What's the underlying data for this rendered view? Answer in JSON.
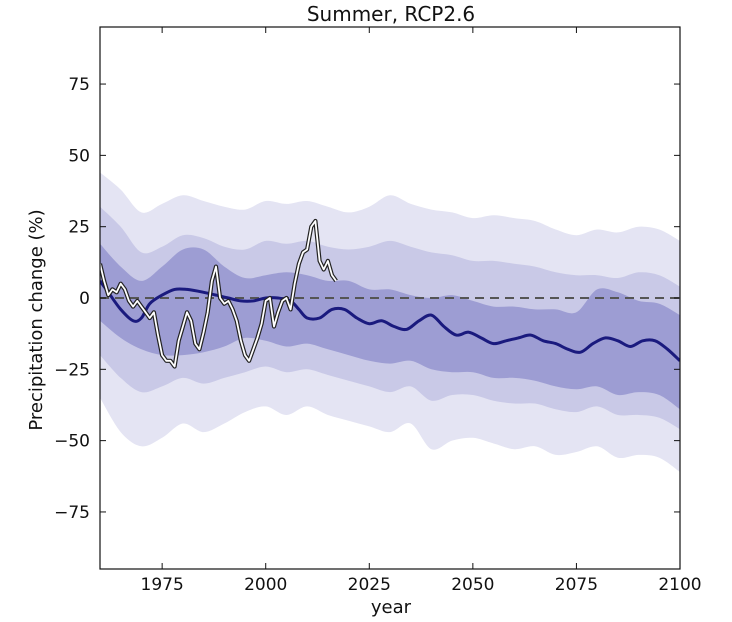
{
  "chart_data": {
    "type": "line",
    "title": "Summer, RCP2.6",
    "xlabel": "year",
    "ylabel": "Precipitation change (%)",
    "xlim": [
      1960,
      2100
    ],
    "ylim": [
      -95,
      95
    ],
    "xticks": [
      1975,
      2000,
      2025,
      2050,
      2075,
      2100
    ],
    "yticks": [
      -75,
      -50,
      -25,
      0,
      25,
      50,
      75
    ],
    "xtick_labels": [
      "1975",
      "2000",
      "2025",
      "2050",
      "2075",
      "2100"
    ],
    "ytick_labels": [
      "−75",
      "−50",
      "−25",
      "0",
      "25",
      "50",
      "75"
    ],
    "reference_line": {
      "y": 0,
      "style": "dashed",
      "color": "#555555"
    },
    "colors": {
      "band_outer": "#e4e4f3",
      "band_middle": "#c9c9e7",
      "band_inner": "#9d9dd3",
      "median": "#1a1a7e",
      "observed_outline": "#222222",
      "observed": "#ffffff"
    },
    "bands": {
      "x": [
        1960,
        1965,
        1970,
        1975,
        1980,
        1985,
        1990,
        1995,
        2000,
        2005,
        2010,
        2015,
        2020,
        2025,
        2030,
        2035,
        2040,
        2045,
        2050,
        2055,
        2060,
        2065,
        2070,
        2075,
        2080,
        2085,
        2090,
        2095,
        2100
      ],
      "outer_upper": [
        44,
        38,
        30,
        33,
        36,
        34,
        32,
        31,
        34,
        33,
        34,
        32,
        30,
        32,
        36,
        33,
        31,
        30,
        28,
        29,
        28,
        27,
        24,
        22,
        24,
        23,
        25,
        24,
        20
      ],
      "outer_lower": [
        -35,
        -47,
        -52,
        -49,
        -44,
        -47,
        -44,
        -40,
        -38,
        -41,
        -38,
        -41,
        -43,
        -45,
        -47,
        -44,
        -53,
        -50,
        -49,
        -51,
        -53,
        -52,
        -55,
        -54,
        -52,
        -56,
        -55,
        -56,
        -61
      ],
      "middle_upper": [
        32,
        25,
        16,
        18,
        22,
        21,
        18,
        17,
        20,
        19,
        20,
        18,
        17,
        18,
        20,
        18,
        16,
        15,
        13,
        13,
        12,
        11,
        9,
        8,
        8,
        7,
        9,
        8,
        4
      ],
      "middle_lower": [
        -20,
        -28,
        -33,
        -31,
        -28,
        -30,
        -28,
        -26,
        -24,
        -26,
        -25,
        -27,
        -29,
        -31,
        -33,
        -31,
        -36,
        -34,
        -34,
        -36,
        -37,
        -37,
        -39,
        -40,
        -38,
        -41,
        -41,
        -42,
        -46
      ],
      "inner_upper": [
        19,
        11,
        6,
        11,
        17,
        17,
        11,
        7,
        8,
        9,
        8,
        6,
        6,
        3,
        3,
        1,
        0,
        1,
        -1,
        -3,
        -3,
        -4,
        -4,
        -5,
        3,
        2,
        -1,
        -2,
        -6
      ],
      "inner_lower": [
        -8,
        -14,
        -18,
        -20,
        -20,
        -19,
        -17,
        -14,
        -15,
        -17,
        -16,
        -18,
        -20,
        -22,
        -23,
        -22,
        -25,
        -26,
        -26,
        -28,
        -28,
        -29,
        -31,
        -32,
        -31,
        -34,
        -33,
        -34,
        -39
      ]
    },
    "series": [
      {
        "name": "median projection",
        "x": [
          1960,
          1962,
          1965,
          1968,
          1970,
          1972,
          1975,
          1978,
          1981,
          1985,
          1988,
          1991,
          1994,
          1997,
          2000,
          2003,
          2006,
          2008,
          2010,
          2013,
          2016,
          2019,
          2022,
          2025,
          2028,
          2031,
          2034,
          2037,
          2040,
          2043,
          2046,
          2049,
          2052,
          2055,
          2058,
          2061,
          2064,
          2067,
          2070,
          2073,
          2076,
          2079,
          2082,
          2085,
          2088,
          2091,
          2094,
          2097,
          2100
        ],
        "y": [
          6,
          2,
          -4,
          -8,
          -7,
          -2,
          1,
          3,
          3,
          2,
          1,
          0,
          -1,
          -1,
          0,
          0,
          -1,
          -4,
          -7,
          -7,
          -4,
          -4,
          -7,
          -9,
          -8,
          -10,
          -11,
          -8,
          -6,
          -10,
          -13,
          -12,
          -14,
          -16,
          -15,
          -14,
          -13,
          -15,
          -16,
          -18,
          -19,
          -16,
          -14,
          -15,
          -17,
          -15,
          -15,
          -18,
          -22
        ]
      },
      {
        "name": "observed",
        "x": [
          1960,
          1961,
          1962,
          1963,
          1964,
          1965,
          1966,
          1967,
          1968,
          1969,
          1970,
          1971,
          1972,
          1973,
          1974,
          1975,
          1976,
          1977,
          1978,
          1979,
          1980,
          1981,
          1982,
          1983,
          1984,
          1985,
          1986,
          1987,
          1988,
          1989,
          1990,
          1991,
          1992,
          1993,
          1994,
          1995,
          1996,
          1997,
          1998,
          1999,
          2000,
          2001,
          2002,
          2003,
          2004,
          2005,
          2006,
          2007,
          2008,
          2009,
          2010,
          2011,
          2012,
          2013,
          2014,
          2015,
          2016,
          2017
        ],
        "y": [
          12,
          6,
          1,
          3,
          2,
          5,
          3,
          -1,
          -3,
          -1,
          -3,
          -5,
          -7,
          -5,
          -13,
          -20,
          -22,
          -22,
          -24,
          -15,
          -10,
          -5,
          -8,
          -16,
          -18,
          -12,
          -5,
          6,
          11,
          0,
          -2,
          -1,
          -4,
          -8,
          -15,
          -20,
          -22,
          -18,
          -14,
          -9,
          -1,
          0,
          -10,
          -5,
          -1,
          0,
          -4,
          5,
          12,
          16,
          17,
          25,
          27,
          13,
          10,
          13,
          8,
          6
        ]
      }
    ]
  }
}
